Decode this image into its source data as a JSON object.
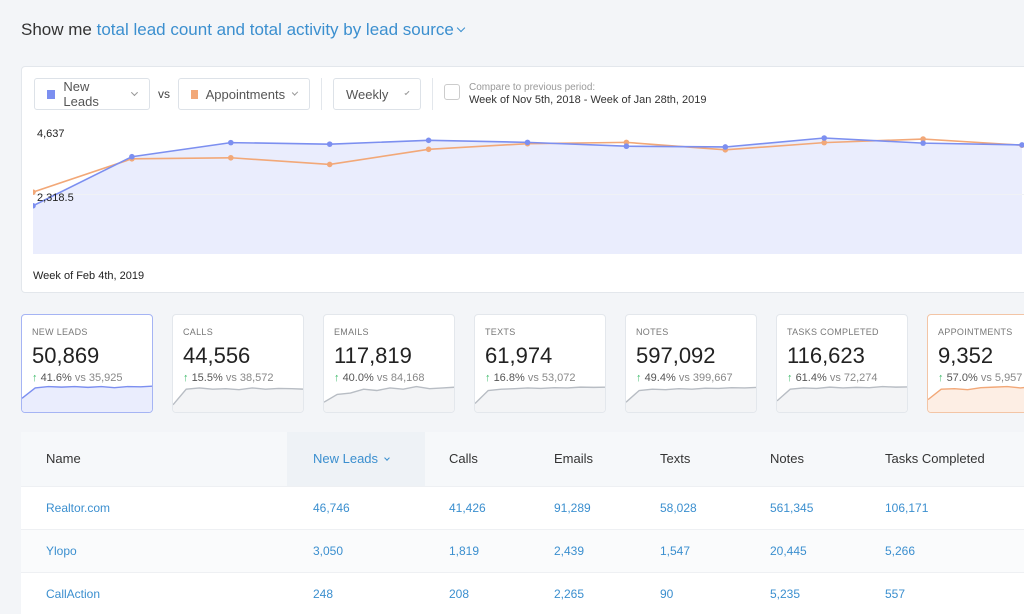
{
  "header": {
    "prefix": "Show me",
    "selector": "total lead count and total activity by lead source"
  },
  "toolbar": {
    "metric_a": {
      "label": "New Leads",
      "color": "#7c8ff0"
    },
    "vs": "vs",
    "metric_b": {
      "label": "Appointments",
      "color": "#f2a878"
    },
    "interval": "Weekly",
    "compare_label": "Compare to previous period:",
    "compare_range": "Week of Nov 5th, 2018 - Week of Jan 28th, 2019",
    "compare_checked": false
  },
  "chart_data": {
    "type": "line",
    "x_label_shown": "Week of Feb 4th, 2019",
    "y_ticks": [
      "4,637",
      "2,318.5"
    ],
    "ylim": [
      0,
      4637
    ],
    "series": [
      {
        "name": "New Leads",
        "color": "#7c8ff0",
        "values": [
          1880,
          3790,
          4340,
          4280,
          4430,
          4350,
          4200,
          4170,
          4520,
          4320,
          4250
        ]
      },
      {
        "name": "Appointments",
        "color": "#f2a878",
        "values": [
          2410,
          3710,
          3750,
          3490,
          4080,
          4300,
          4350,
          4060,
          4340,
          4480,
          4240
        ]
      }
    ]
  },
  "stats": [
    {
      "label": "NEW LEADS",
      "value": "50,869",
      "change": "41.6%",
      "vs_prefix": "vs",
      "prev": "35,925",
      "active": true,
      "spark": [
        0.45,
        0.85,
        0.9,
        0.88,
        0.9,
        0.87,
        0.9,
        0.86,
        0.9,
        0.89,
        0.92
      ]
    },
    {
      "label": "CALLS",
      "value": "44,556",
      "change": "15.5%",
      "vs_prefix": "vs",
      "prev": "38,572",
      "spark": [
        0.2,
        0.8,
        0.85,
        0.8,
        0.82,
        0.78,
        0.85,
        0.8,
        0.83,
        0.82,
        0.8
      ]
    },
    {
      "label": "EMAILS",
      "value": "117,819",
      "change": "40.0%",
      "vs_prefix": "vs",
      "prev": "84,168",
      "spark": [
        0.3,
        0.6,
        0.65,
        0.8,
        0.75,
        0.85,
        0.8,
        0.9,
        0.82,
        0.85,
        0.88
      ]
    },
    {
      "label": "TEXTS",
      "value": "61,974",
      "change": "16.8%",
      "vs_prefix": "vs",
      "prev": "53,072",
      "spark": [
        0.25,
        0.75,
        0.8,
        0.82,
        0.85,
        0.83,
        0.86,
        0.85,
        0.88,
        0.87,
        0.88
      ]
    },
    {
      "label": "NOTES",
      "value": "597,092",
      "change": "49.4%",
      "vs_prefix": "vs",
      "prev": "399,667",
      "spark": [
        0.3,
        0.75,
        0.8,
        0.78,
        0.82,
        0.8,
        0.84,
        0.83,
        0.86,
        0.85,
        0.87
      ]
    },
    {
      "label": "TASKS COMPLETED",
      "value": "116,623",
      "change": "61.4%",
      "vs_prefix": "vs",
      "prev": "72,274",
      "spark": [
        0.35,
        0.8,
        0.85,
        0.83,
        0.88,
        0.85,
        0.87,
        0.86,
        0.9,
        0.88,
        0.89
      ]
    },
    {
      "label": "APPOINTMENTS",
      "value": "9,352",
      "change": "57.0%",
      "vs_prefix": "vs",
      "prev": "5,957",
      "appt": true,
      "spark": [
        0.4,
        0.8,
        0.82,
        0.78,
        0.86,
        0.88,
        0.9,
        0.85,
        0.9,
        0.92,
        0.9
      ]
    }
  ],
  "table": {
    "columns": [
      "Name",
      "New Leads",
      "Calls",
      "Emails",
      "Texts",
      "Notes",
      "Tasks Completed"
    ],
    "sorted_column": "New Leads",
    "rows": [
      [
        "Realtor.com",
        "46,746",
        "41,426",
        "91,289",
        "58,028",
        "561,345",
        "106,171"
      ],
      [
        "Ylopo",
        "3,050",
        "1,819",
        "2,439",
        "1,547",
        "20,445",
        "5,266"
      ],
      [
        "CallAction",
        "248",
        "208",
        "2,265",
        "90",
        "5,235",
        "557"
      ]
    ]
  }
}
